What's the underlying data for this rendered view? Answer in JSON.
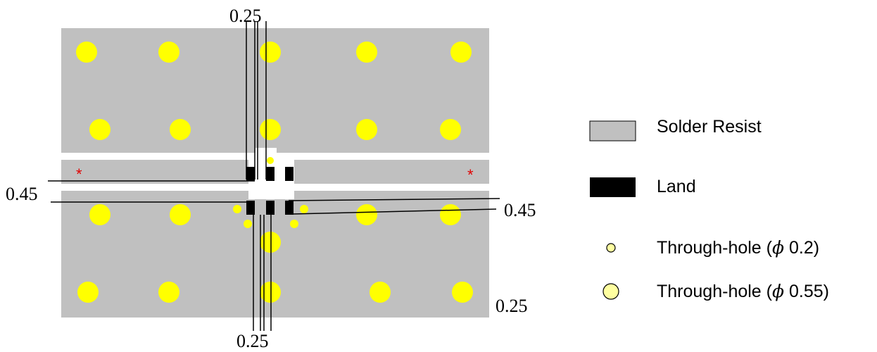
{
  "dimensions": {
    "top": "0.25",
    "left": "0.45",
    "right": "0.45",
    "bottom_right": "0.25",
    "bottom": "0.25"
  },
  "markers": {
    "left_star": "*",
    "right_star": "*"
  },
  "legend": {
    "solder_resist": "Solder Resist",
    "land": "Land",
    "through_hole_small": {
      "prefix": "Through-hole (",
      "phi": "ϕ",
      "value": " 0.2)"
    },
    "through_hole_large": {
      "prefix": "Through-hole (",
      "phi": "ϕ",
      "value": " 0.55)"
    }
  },
  "colors": {
    "solder_resist": "#c0c0c0",
    "land": "#000000",
    "through_hole": "#ffff00",
    "legend_hole_fill": "#ffffa0",
    "marker": "#e00000"
  }
}
